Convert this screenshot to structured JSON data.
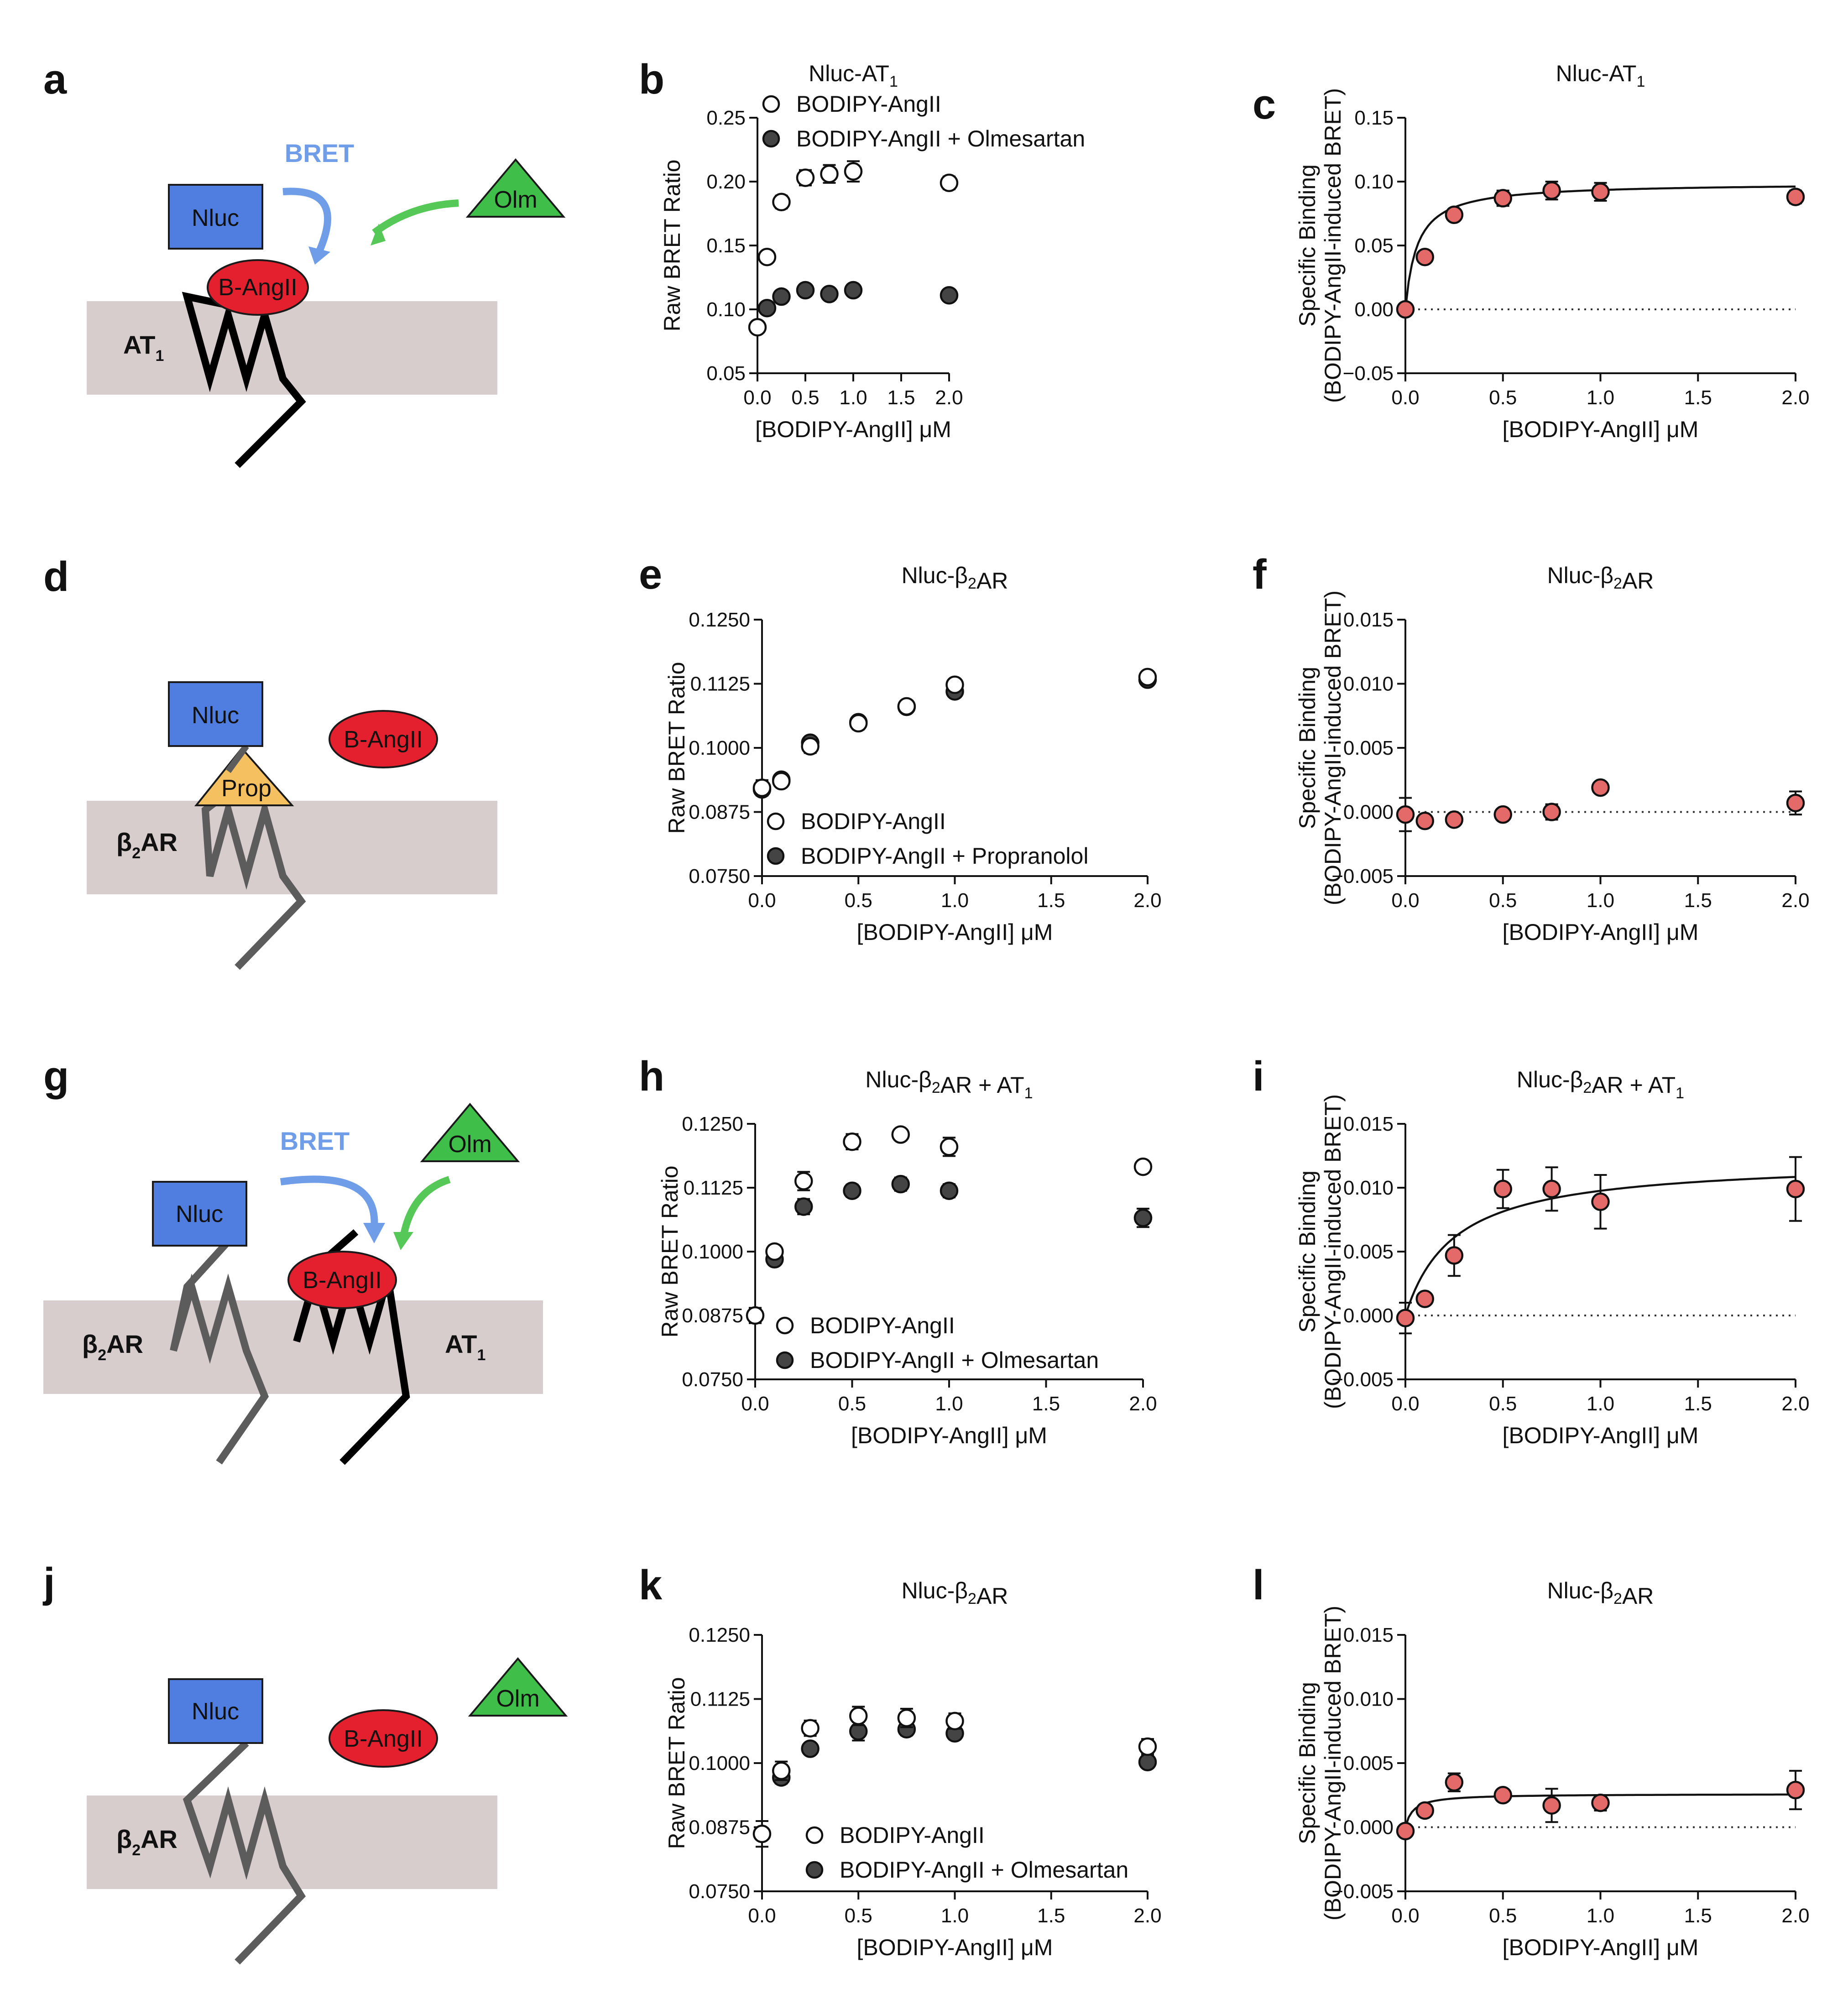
{
  "colors": {
    "membrane": "#d8cdcd",
    "nluc": "#4f7de0",
    "angii": "#e5202e",
    "olm": "#3fbf4a",
    "prop": "#f4c060",
    "bret_arrow": "#6f9de8",
    "olm_arrow": "#55c857",
    "specific_point": "#e46a6a",
    "blocked_point": "#444444",
    "receptor_at1": "#000000",
    "receptor_b2ar": "#5c5c5c"
  },
  "diagrams": {
    "a": {
      "letter": "a",
      "nluc": "Nluc",
      "bret": "BRET",
      "ligand": "B-AngII",
      "olm": "Olm",
      "receptor": "AT",
      "receptor_sub": "1"
    },
    "d": {
      "letter": "d",
      "nluc": "Nluc",
      "ligand": "B-AngII",
      "prop": "Prop",
      "receptor": "β",
      "receptor_sub": "2",
      "receptor_tail": "AR"
    },
    "g": {
      "letter": "g",
      "nluc": "Nluc",
      "bret": "BRET",
      "ligand": "B-AngII",
      "olm": "Olm",
      "receptor1": "β",
      "receptor1_sub": "2",
      "receptor1_tail": "AR",
      "receptor2": "AT",
      "receptor2_sub": "1"
    },
    "j": {
      "letter": "j",
      "nluc": "Nluc",
      "ligand": "B-AngII",
      "olm": "Olm",
      "receptor": "β",
      "receptor_sub": "2",
      "receptor_tail": "AR"
    }
  },
  "chart_data": [
    {
      "panel": "b",
      "type": "scatter",
      "title": "Nluc-AT₁",
      "xlabel": "[BODIPY-AngII] μM",
      "ylabel": "Raw BRET Ratio",
      "xlim": [
        0,
        2
      ],
      "ylim": [
        0.05,
        0.25
      ],
      "xticks": [
        "0.0",
        "0.5",
        "1.0",
        "1.5",
        "2.0"
      ],
      "yticks": [
        "0.05",
        "0.10",
        "0.15",
        "0.20",
        "0.25"
      ],
      "legend": "top-left",
      "series": [
        {
          "name": "BODIPY-AngII",
          "style": "open",
          "points": [
            [
              0,
              0.086,
              0
            ],
            [
              0.1,
              0.141,
              0
            ],
            [
              0.25,
              0.184,
              0.005
            ],
            [
              0.5,
              0.203,
              0.006
            ],
            [
              0.75,
              0.206,
              0.007
            ],
            [
              1.0,
              0.208,
              0.008
            ],
            [
              2.0,
              0.199,
              0.005
            ]
          ]
        },
        {
          "name": "BODIPY-AngII + Olmesartan",
          "style": "filled",
          "points": [
            [
              0.1,
              0.101,
              0
            ],
            [
              0.25,
              0.11,
              0
            ],
            [
              0.5,
              0.115,
              0
            ],
            [
              0.75,
              0.112,
              0
            ],
            [
              1.0,
              0.115,
              0
            ],
            [
              2.0,
              0.111,
              0
            ]
          ]
        }
      ]
    },
    {
      "panel": "c",
      "type": "scatter",
      "title": "Nluc-AT₁",
      "xlabel": "[BODIPY-AngII] μM",
      "ylabel": "Specific Binding (BODIPY-AngII-induced BRET)",
      "xlim": [
        0,
        2
      ],
      "ylim": [
        -0.05,
        0.15
      ],
      "xticks": [
        "0.0",
        "0.5",
        "1.0",
        "1.5",
        "2.0"
      ],
      "yticks": [
        "−0.05",
        "0.00",
        "0.05",
        "0.10",
        "0.15"
      ],
      "series": [
        {
          "name": "",
          "style": "red",
          "points": [
            [
              0,
              0,
              0
            ],
            [
              0.1,
              0.041,
              0
            ],
            [
              0.25,
              0.074,
              0.003
            ],
            [
              0.5,
              0.087,
              0.006
            ],
            [
              0.75,
              0.093,
              0.007
            ],
            [
              1.0,
              0.092,
              0.007
            ],
            [
              2.0,
              0.088,
              0.005
            ]
          ]
        }
      ],
      "fit": {
        "bmax": 0.099,
        "kd": 0.06
      }
    },
    {
      "panel": "e",
      "type": "scatter",
      "title": "Nluc-β₂AR",
      "xlabel": "[BODIPY-AngII] μM",
      "ylabel": "Raw BRET Ratio",
      "xlim": [
        0,
        2
      ],
      "ylim": [
        0.075,
        0.125
      ],
      "xticks": [
        "0.0",
        "0.5",
        "1.0",
        "1.5",
        "2.0"
      ],
      "yticks": [
        "0.0750",
        "0.0875",
        "0.1000",
        "0.1125",
        "0.1250"
      ],
      "legend": "bottom-left",
      "series": [
        {
          "name": "BODIPY-AngII",
          "style": "open",
          "points": [
            [
              0,
              0.0922,
              0.0015
            ],
            [
              0.1,
              0.0935,
              0
            ],
            [
              0.25,
              0.1003,
              0.0013
            ],
            [
              0.5,
              0.1048,
              0.0012
            ],
            [
              0.75,
              0.1081,
              0
            ],
            [
              1.0,
              0.1123,
              0
            ],
            [
              2.0,
              0.1138,
              0
            ]
          ]
        },
        {
          "name": "BODIPY-AngII + Propranolol",
          "style": "filled",
          "points": [
            [
              0,
              0.0919,
              0
            ],
            [
              0.1,
              0.0938,
              0
            ],
            [
              0.25,
              0.101,
              0
            ],
            [
              0.5,
              0.105,
              0
            ],
            [
              0.75,
              0.108,
              0
            ],
            [
              1.0,
              0.111,
              0
            ],
            [
              2.0,
              0.1133,
              0
            ]
          ]
        }
      ]
    },
    {
      "panel": "f",
      "type": "scatter",
      "title": "Nluc-β₂AR",
      "xlabel": "[BODIPY-AngII] μM",
      "ylabel": "Specific Binding (BODIPY-AngII-induced BRET)",
      "xlim": [
        0,
        2
      ],
      "ylim": [
        -0.005,
        0.015
      ],
      "xticks": [
        "0.0",
        "0.5",
        "1.0",
        "1.5",
        "2.0"
      ],
      "yticks": [
        "−0.005",
        "0.000",
        "0.005",
        "0.010",
        "0.015"
      ],
      "series": [
        {
          "name": "",
          "style": "red",
          "points": [
            [
              0,
              -0.0002,
              0.0013
            ],
            [
              0.1,
              -0.0007,
              0
            ],
            [
              0.25,
              -0.0006,
              0
            ],
            [
              0.5,
              -0.0002,
              0
            ],
            [
              0.75,
              0,
              0.0006
            ],
            [
              1.0,
              0.0019,
              0
            ],
            [
              2.0,
              0.0007,
              0.0009
            ]
          ]
        }
      ]
    },
    {
      "panel": "h",
      "type": "scatter",
      "title": "Nluc-β₂AR + AT₁",
      "xlabel": "[BODIPY-AngII] μM",
      "ylabel": "Raw BRET Ratio",
      "xlim": [
        0,
        2
      ],
      "ylim": [
        0.075,
        0.125
      ],
      "xticks": [
        "0.0",
        "0.5",
        "1.0",
        "1.5",
        "2.0"
      ],
      "yticks": [
        "0.0750",
        "0.0875",
        "0.1000",
        "0.1125",
        "0.1250"
      ],
      "legend": "bottom-left",
      "series": [
        {
          "name": "BODIPY-AngII",
          "style": "open",
          "points": [
            [
              0,
              0.0875,
              0.0015
            ],
            [
              0.1,
              0.1,
              0.0012
            ],
            [
              0.25,
              0.1138,
              0.0018
            ],
            [
              0.5,
              0.1215,
              0.0015
            ],
            [
              0.75,
              0.1229,
              0
            ],
            [
              1.0,
              0.1205,
              0.0018
            ],
            [
              2.0,
              0.1166,
              0
            ]
          ]
        },
        {
          "name": "BODIPY-AngII + Olmesartan",
          "style": "filled",
          "points": [
            [
              0.1,
              0.0985,
              0
            ],
            [
              0.25,
              0.1088,
              0.0015
            ],
            [
              0.5,
              0.1119,
              0.0012
            ],
            [
              0.75,
              0.1132,
              0.0013
            ],
            [
              1.0,
              0.1119,
              0.0013
            ],
            [
              2.0,
              0.1066,
              0.0018
            ]
          ]
        }
      ]
    },
    {
      "panel": "i",
      "type": "scatter",
      "title": "Nluc-β₂AR + AT₁",
      "xlabel": "[BODIPY-AngII] μM",
      "ylabel": "Specific Binding (BODIPY-AngII-induced BRET)",
      "xlim": [
        0,
        2
      ],
      "ylim": [
        -0.005,
        0.015
      ],
      "xticks": [
        "0.0",
        "0.5",
        "1.0",
        "1.5",
        "2.0"
      ],
      "yticks": [
        "−0.005",
        "0.000",
        "0.005",
        "0.010",
        "0.015"
      ],
      "series": [
        {
          "name": "",
          "style": "red",
          "points": [
            [
              0,
              -0.0002,
              0.0012
            ],
            [
              0.1,
              0.0013,
              0
            ],
            [
              0.25,
              0.0047,
              0.0016
            ],
            [
              0.5,
              0.0099,
              0.0015
            ],
            [
              0.75,
              0.0099,
              0.0017
            ],
            [
              1.0,
              0.0089,
              0.0021
            ],
            [
              2.0,
              0.0099,
              0.0025
            ]
          ]
        }
      ],
      "fit": {
        "bmax": 0.0122,
        "kd": 0.25
      }
    },
    {
      "panel": "k",
      "type": "scatter",
      "title": "Nluc-β₂AR",
      "xlabel": "[BODIPY-AngII] μM",
      "ylabel": "Raw BRET Ratio",
      "xlim": [
        0,
        2
      ],
      "ylim": [
        0.075,
        0.125
      ],
      "xticks": [
        "0.0",
        "0.5",
        "1.0",
        "1.5",
        "2.0"
      ],
      "yticks": [
        "0.0750",
        "0.0875",
        "0.1000",
        "0.1125",
        "0.1250"
      ],
      "legend": "bottom-left",
      "series": [
        {
          "name": "BODIPY-AngII",
          "style": "open",
          "points": [
            [
              0,
              0.0862,
              0.0025
            ],
            [
              0.1,
              0.0985,
              0.0018
            ],
            [
              0.25,
              0.1068,
              0.0015
            ],
            [
              0.5,
              0.1092,
              0.0018
            ],
            [
              0.75,
              0.1088,
              0.0018
            ],
            [
              1.0,
              0.1082,
              0.0015
            ],
            [
              2.0,
              0.1032,
              0.0015
            ]
          ]
        },
        {
          "name": "BODIPY-AngII + Olmesartan",
          "style": "filled",
          "points": [
            [
              0.1,
              0.0972,
              0.0012
            ],
            [
              0.25,
              0.1028,
              0
            ],
            [
              0.5,
              0.1062,
              0.0018
            ],
            [
              0.75,
              0.1066,
              0.0012
            ],
            [
              1.0,
              0.1058,
              0.0012
            ],
            [
              2.0,
              0.1002,
              0
            ]
          ]
        }
      ]
    },
    {
      "panel": "l",
      "type": "scatter",
      "title": "Nluc-β₂AR",
      "xlabel": "[BODIPY-AngII] μM",
      "ylabel": "Specific Binding (BODIPY-AngII-induced BRET)",
      "xlim": [
        0,
        2
      ],
      "ylim": [
        -0.005,
        0.015
      ],
      "xticks": [
        "0.0",
        "0.5",
        "1.0",
        "1.5",
        "2.0"
      ],
      "yticks": [
        "−0.005",
        "0.000",
        "0.005",
        "0.010",
        "0.015"
      ],
      "series": [
        {
          "name": "",
          "style": "red",
          "points": [
            [
              0,
              -0.0003,
              0
            ],
            [
              0.1,
              0.0013,
              0
            ],
            [
              0.25,
              0.0035,
              0.0007
            ],
            [
              0.5,
              0.0025,
              0
            ],
            [
              0.75,
              0.0017,
              0.0013
            ],
            [
              1.0,
              0.0019,
              0.0006
            ],
            [
              2.0,
              0.0029,
              0.0015
            ]
          ]
        }
      ],
      "fit": {
        "bmax": 0.0026,
        "kd": 0.04
      }
    }
  ]
}
